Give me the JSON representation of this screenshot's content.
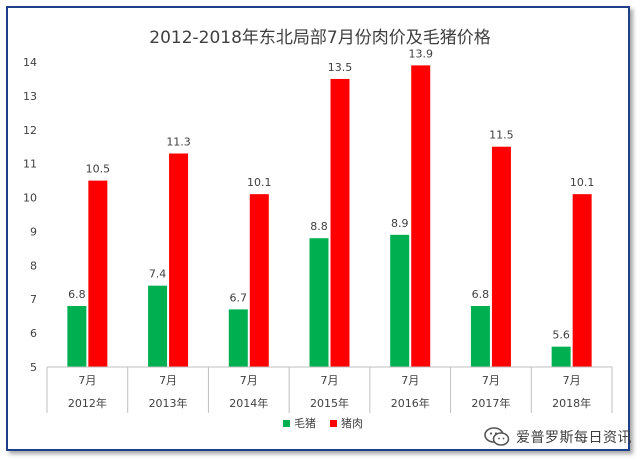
{
  "chart_data": {
    "type": "bar",
    "title": "2012-2018年东北局部7月份肉价及毛猪价格",
    "categories": [
      "7月",
      "7月",
      "7月",
      "7月",
      "7月",
      "7月",
      "7月"
    ],
    "groups": [
      "2012年",
      "2013年",
      "2014年",
      "2015年",
      "2016年",
      "2017年",
      "2018年"
    ],
    "series": [
      {
        "name": "毛猪",
        "color": "#00b050",
        "values": [
          6.8,
          7.4,
          6.7,
          8.8,
          8.9,
          6.8,
          5.6
        ]
      },
      {
        "name": "猪肉",
        "color": "#ff0000",
        "values": [
          10.5,
          11.3,
          10.1,
          13.5,
          13.9,
          11.5,
          10.1
        ]
      }
    ],
    "ylim": [
      5,
      14
    ],
    "yticks": [
      5,
      6,
      7,
      8,
      9,
      10,
      11,
      12,
      13,
      14
    ],
    "grid": false,
    "legend": "bottom-center"
  },
  "watermark": {
    "text": "爱普罗斯每日资讯",
    "icon": "wechat-icon"
  }
}
